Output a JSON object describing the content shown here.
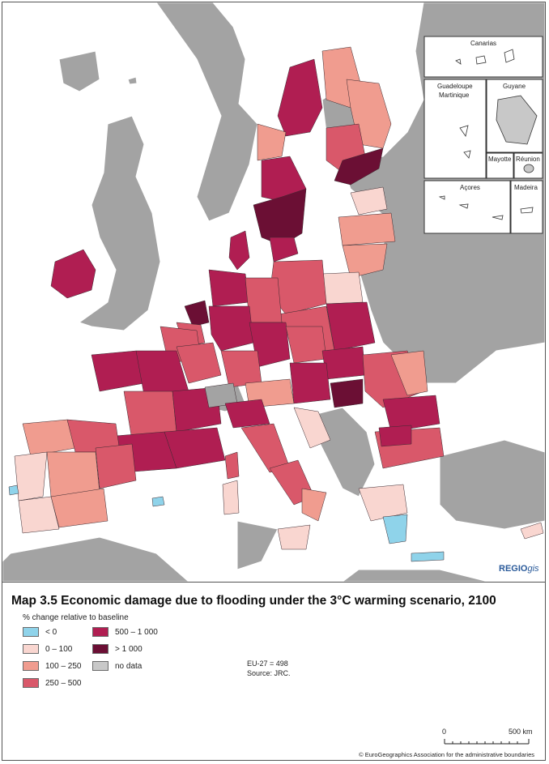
{
  "title": "Map 3.5 Economic damage due to flooding under the 3°C warming scenario, 2100",
  "legend": {
    "title": "% change relative to baseline",
    "items": [
      {
        "label": "< 0",
        "color": "#8fd3ea"
      },
      {
        "label": "0 – 100",
        "color": "#f9d6d0"
      },
      {
        "label": "100 – 250",
        "color": "#f09c8f"
      },
      {
        "label": "250 – 500",
        "color": "#d9586a"
      },
      {
        "label": "500 – 1 000",
        "color": "#b01e52"
      },
      {
        "label": "> 1 000",
        "color": "#6b0f34"
      },
      {
        "label": "no data",
        "color": "#c8c8c8"
      }
    ]
  },
  "notes": {
    "eu": "EU-27 = 498",
    "source": "Source: JRC."
  },
  "scale": {
    "zero": "0",
    "max": "500 km"
  },
  "credit": "© EuroGeographics Association for the administrative boundaries",
  "logo": {
    "brand": "REGIO",
    "suffix": "gis"
  },
  "insets": {
    "canarias": "Canarias",
    "guadeloupe": "Guadeloupe",
    "martinique": "Martinique",
    "guyane": "Guyane",
    "mayotte": "Mayotte",
    "reunion": "Réunion",
    "acores": "Açores",
    "madeira": "Madeira"
  }
}
